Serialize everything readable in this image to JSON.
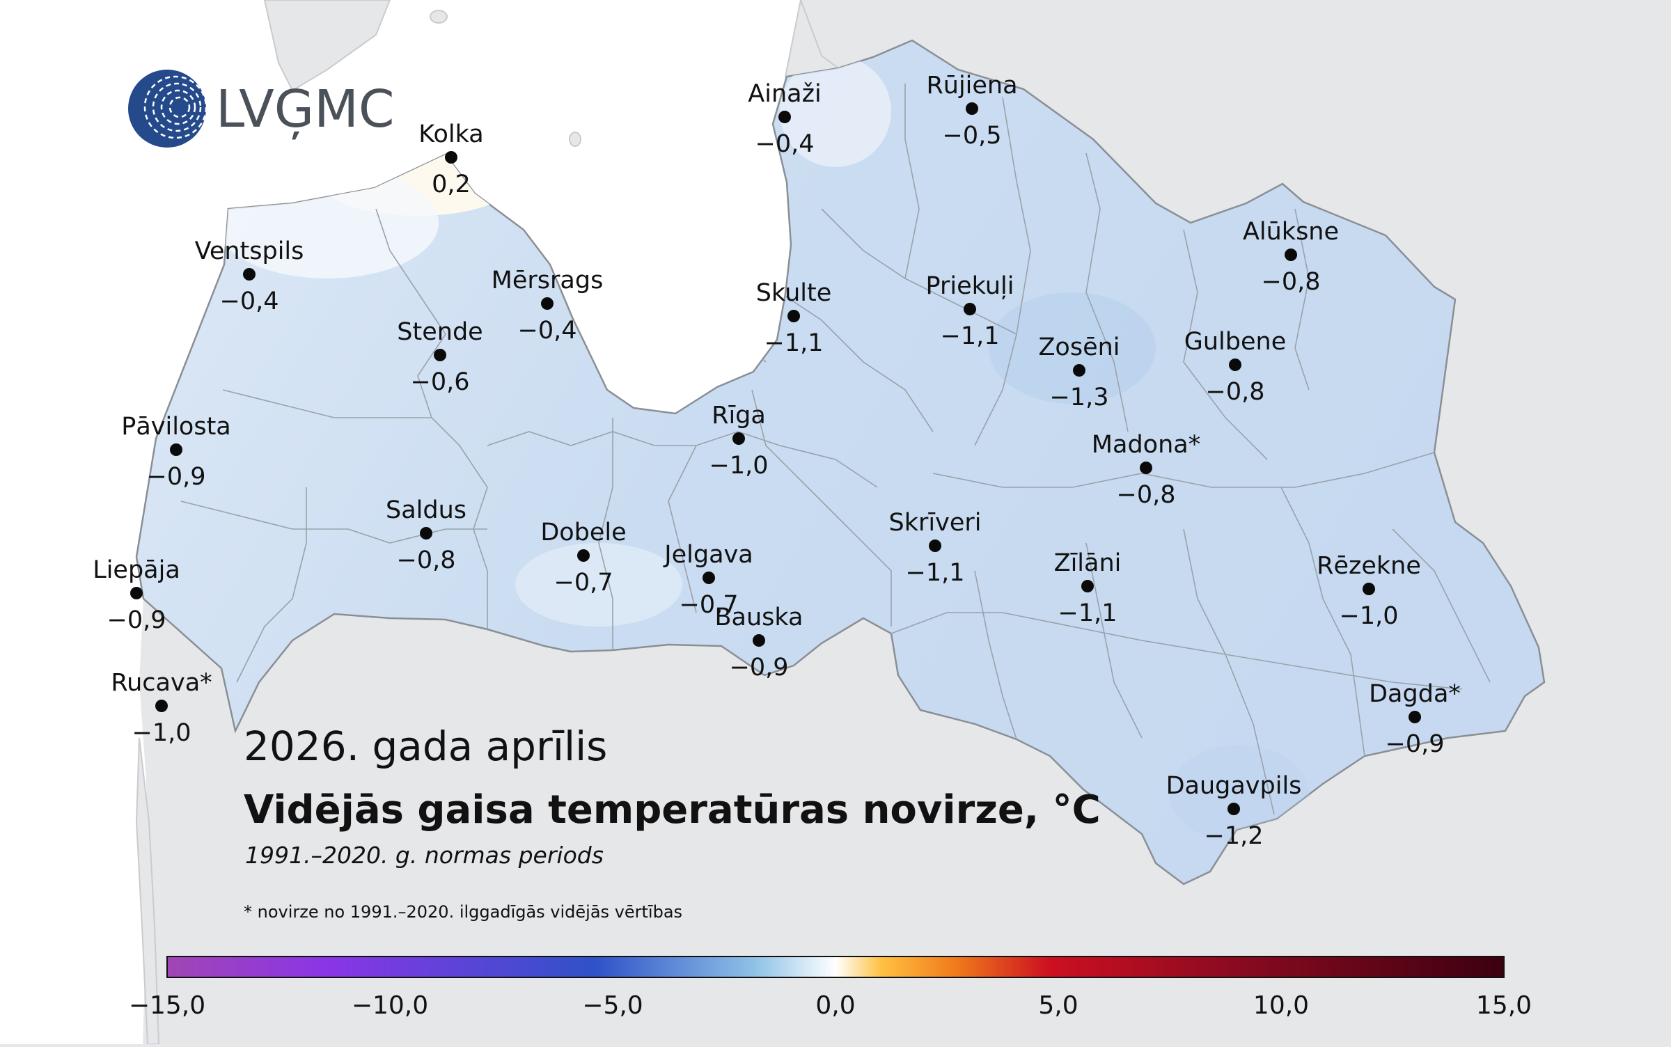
{
  "logo": {
    "text": "LVĢMC"
  },
  "title": {
    "period": "2026. gada aprīlis",
    "main": "Vidējās gaisa temperatūras novirze, °C",
    "subtitle": "1991.–2020. g. normas periods",
    "footnote": "* novirze no 1991.–2020. ilggadīgās vidējās vērtības"
  },
  "stations": [
    {
      "name": "Ainaži",
      "value": "−0,4"
    },
    {
      "name": "Rūjiena",
      "value": "−0,5"
    },
    {
      "name": "Kolka",
      "value": "0,2"
    },
    {
      "name": "Ventspils",
      "value": "−0,4"
    },
    {
      "name": "Mērsrags",
      "value": "−0,4"
    },
    {
      "name": "Stende",
      "value": "−0,6"
    },
    {
      "name": "Skulte",
      "value": "−1,1"
    },
    {
      "name": "Priekuļi",
      "value": "−1,1"
    },
    {
      "name": "Alūksne",
      "value": "−0,8"
    },
    {
      "name": "Zosēni",
      "value": "−1,3"
    },
    {
      "name": "Gulbene",
      "value": "−0,8"
    },
    {
      "name": "Pāvilosta",
      "value": "−0,9"
    },
    {
      "name": "Rīga",
      "value": "−1,0"
    },
    {
      "name": "Madona*",
      "value": "−0,8"
    },
    {
      "name": "Saldus",
      "value": "−0,8"
    },
    {
      "name": "Dobele",
      "value": "−0,7"
    },
    {
      "name": "Skrīveri",
      "value": "−1,1"
    },
    {
      "name": "Liepāja",
      "value": "−0,9"
    },
    {
      "name": "Jelgava",
      "value": "−0,7"
    },
    {
      "name": "Zīlāni",
      "value": "−1,1"
    },
    {
      "name": "Rēzekne",
      "value": "−1,0"
    },
    {
      "name": "Bauska",
      "value": "−0,9"
    },
    {
      "name": "Rucava*",
      "value": "−1,0"
    },
    {
      "name": "Dagda*",
      "value": "−0,9"
    },
    {
      "name": "Daugavpils",
      "value": "−1,2"
    }
  ],
  "legend": {
    "min": -15,
    "max": 15,
    "ticks": [
      "−15,0",
      "−10,0",
      "−5,0",
      "0,0",
      "5,0",
      "10,0",
      "15,0"
    ],
    "colors": [
      "#a046b4",
      "#8a35e6",
      "#2f52c8",
      "#8fc2e6",
      "#ffffff",
      "#ffc040",
      "#f07a1c",
      "#cc1020",
      "#8a0a20",
      "#3c0010"
    ]
  }
}
